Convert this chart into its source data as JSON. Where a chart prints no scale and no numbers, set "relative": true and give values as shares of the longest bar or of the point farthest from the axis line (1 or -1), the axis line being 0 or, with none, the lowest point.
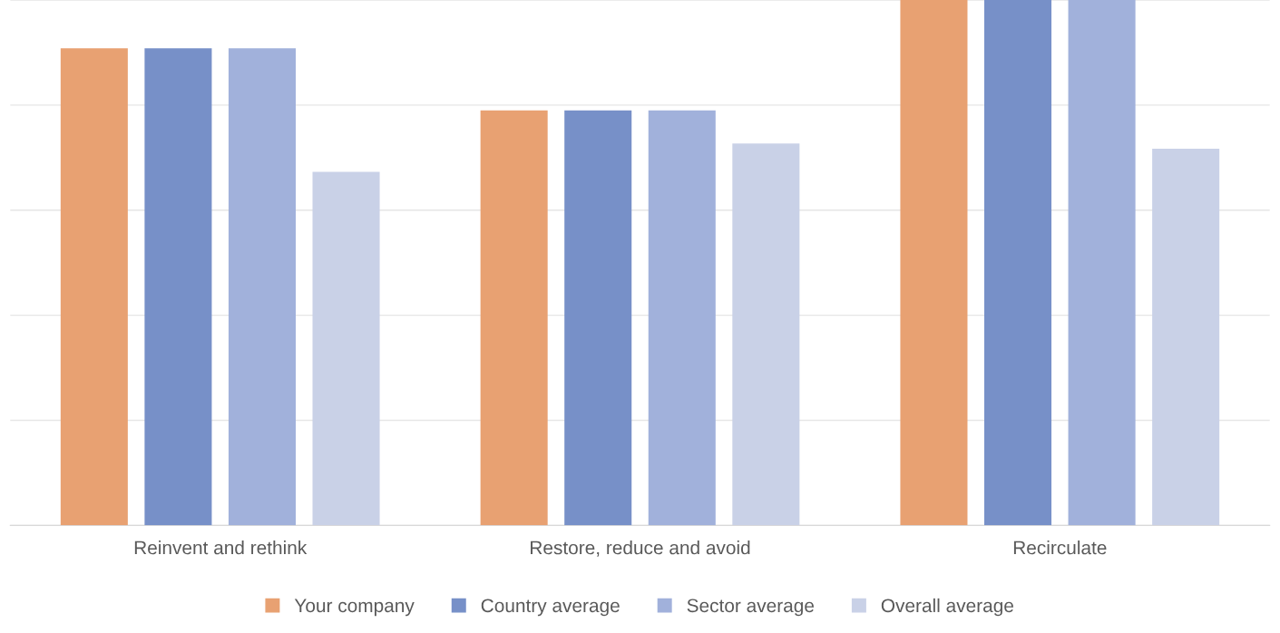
{
  "chart_data": {
    "type": "bar",
    "relative": true,
    "categories": [
      "Reinvent and rethink",
      "Restore, reduce and avoid",
      "Recirculate"
    ],
    "series": [
      {
        "name": "Your company",
        "color": "#e8a172",
        "values": [
          0.908,
          0.79,
          1
        ]
      },
      {
        "name": "Country average",
        "color": "#7790c8",
        "values": [
          0.908,
          0.79,
          1
        ]
      },
      {
        "name": "Sector average",
        "color": "#a1b1db",
        "values": [
          0.908,
          0.79,
          1
        ]
      },
      {
        "name": "Overall average",
        "color": "#c9d1e7",
        "values": [
          0.673,
          0.727,
          0.717
        ]
      }
    ],
    "grid": "y",
    "legend": "bottom"
  }
}
